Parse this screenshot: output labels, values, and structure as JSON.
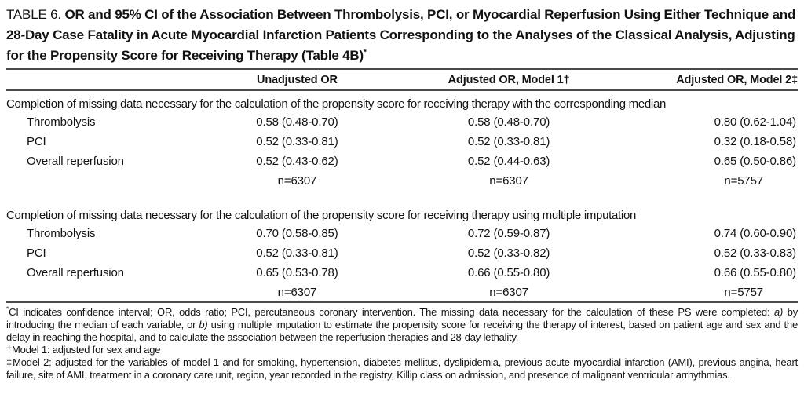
{
  "title": {
    "label": "TABLE 6.",
    "text": "OR and 95% CI of the Association Between Thrombolysis, PCI, or Myocardial Reperfusion Using Either Technique and 28-Day Case Fatality in Acute Myocardial Infarction Patients Corresponding to the Analyses of the Classical Analysis, Adjusting for the Propensity Score for Receiving Therapy (Table 4B)",
    "footnote_marker": "*"
  },
  "table": {
    "columns": {
      "unadjusted": "Unadjusted OR",
      "model1": "Adjusted OR, Model 1†",
      "model2": "Adjusted OR, Model 2‡"
    },
    "sections": [
      {
        "header": "Completion of missing data necessary for the calculation of the propensity score for receiving therapy with the corresponding median",
        "rows": [
          {
            "label": "Thrombolysis",
            "values": [
              "0.58 (0.48-0.70)",
              "0.58 (0.48-0.70)",
              "0.80 (0.62-1.04)"
            ]
          },
          {
            "label": "PCI",
            "values": [
              "0.52 (0.33-0.81)",
              "0.52 (0.33-0.81)",
              "0.32 (0.18-0.58)"
            ]
          },
          {
            "label": "Overall reperfusion",
            "values": [
              "0.52 (0.43-0.62)",
              "0.52 (0.44-0.63)",
              "0.65 (0.50-0.86)"
            ]
          }
        ],
        "n_values": [
          "n=6307",
          "n=6307",
          "n=5757"
        ]
      },
      {
        "header": "Completion of missing data necessary for the calculation of the propensity score for receiving therapy using multiple imputation",
        "rows": [
          {
            "label": "Thrombolysis",
            "values": [
              "0.70 (0.58-0.85)",
              "0.72 (0.59-0.87)",
              "0.74 (0.60-0.90)"
            ]
          },
          {
            "label": "PCI",
            "values": [
              "0.52 (0.33-0.81)",
              "0.52 (0.33-0.82)",
              "0.52 (0.33-0.83)"
            ]
          },
          {
            "label": "Overall reperfusion",
            "values": [
              "0.65 (0.53-0.78)",
              "0.66 (0.55-0.80)",
              "0.66 (0.55-0.80)"
            ]
          }
        ],
        "n_values": [
          "n=6307",
          "n=6307",
          "n=5757"
        ]
      }
    ]
  },
  "footnotes": {
    "general": {
      "marker": "*",
      "part1": "CI indicates confidence interval; OR, odds ratio; PCI, percutaneous coronary intervention. The missing data necessary for the calculation of these PS were completed: ",
      "italic_a": "a)",
      "part2": " by introducing the median of each variable, or ",
      "italic_b": "b)",
      "part3": " using multiple imputation to estimate the propensity score for receiving the therapy of interest, based on patient age and sex and the delay in reaching the hospital, and to calculate the association between the reperfusion therapies and 28-day lethality."
    },
    "model1": "†Model 1: adjusted for sex and age",
    "model2": "‡Model 2: adjusted for the variables of model 1 and for smoking, hypertension, diabetes mellitus, dyslipidemia, previous acute myocardial infarction (AMI), previous angina, heart failure, site of AMI, treatment in a coronary care unit, region, year recorded in the registry, Killip class on admission, and presence of malignant ventricular arrhythmias."
  }
}
